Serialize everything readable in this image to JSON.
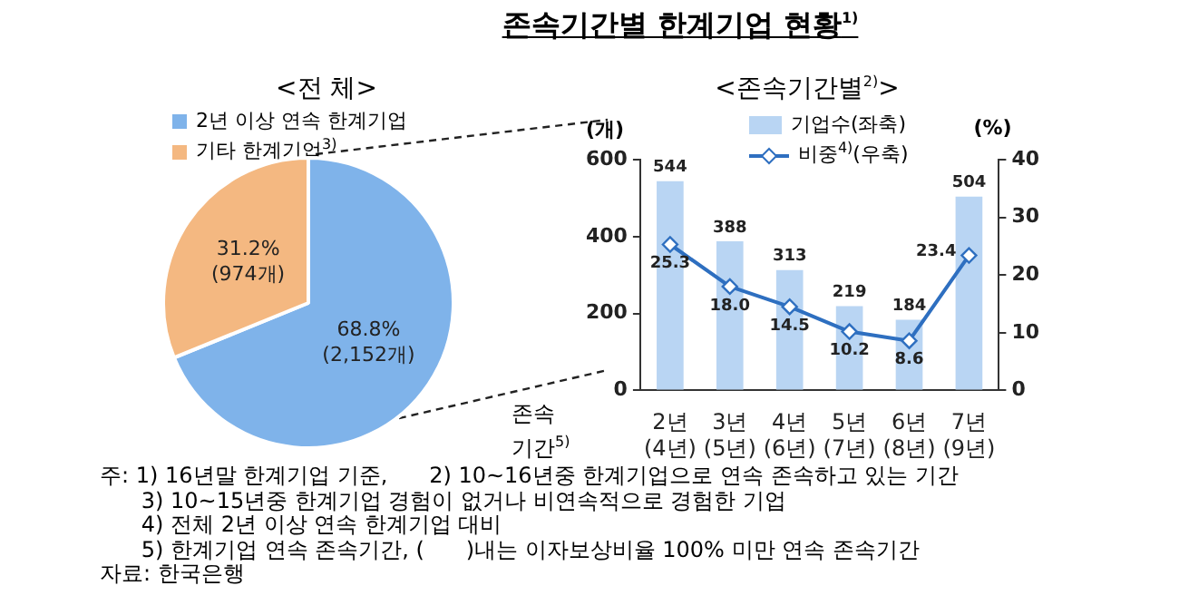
{
  "chart_data": [
    {
      "type": "pie",
      "subtitle": "<전 체>",
      "categories": [
        "2년 이상 연속 한계기업",
        "기타 한계기업$^{3)}$"
      ],
      "values": [
        2152,
        974
      ],
      "colors": [
        "#7fb3ea",
        "#f4b881"
      ],
      "value_labels": [
        "68.8%\n(2,152개)",
        "31.2%\n(974개)"
      ],
      "legend": "top left"
    },
    {
      "type": "bar",
      "title": "존속기간별 한계기업 현황$^{1)}$",
      "subtitle": "<존속기간별$^{2)}$>",
      "categories": [
        "2년\n(4년)",
        "3년\n(5년)",
        "4년\n(6년)",
        "5년\n(7년)",
        "6년\n(8년)",
        "7년\n(9년)"
      ],
      "series": [
        {
          "name": "기업수(좌축)",
          "type": "bar",
          "color": "#b9d5f3",
          "values": [
            544,
            388,
            313,
            219,
            184,
            504
          ],
          "value_labels": [
            "544",
            "388",
            "313",
            "219",
            "184",
            "504"
          ]
        },
        {
          "name": "비중$^{4)}$(우축)",
          "type": "line",
          "axis": "y2",
          "color": "#2e6fc0",
          "values": [
            25.3,
            18.0,
            14.5,
            10.2,
            8.6,
            23.4
          ],
          "value_labels": [
            "25.3",
            "18.0",
            "14.5",
            "10.2",
            "8.6",
            "23.4"
          ]
        }
      ],
      "marker": "diamond",
      "legend": "top",
      "xlabel": "존속\n기간$^{5)}$",
      "ylabel": "(개)",
      "y2label": "(%)",
      "ylim": [
        0,
        600
      ],
      "yticks": [
        0,
        200,
        400,
        600
      ],
      "y2lim": [
        0,
        40
      ],
      "y2ticks": [
        0,
        10,
        20,
        30,
        40
      ],
      "annotations": [
        "주: 1) 16년말 한계기업 기준,      2) 10~16년중 한계기업으로 연속 존속하고 있는 기간",
        "      3) 10~15년중 한계기업 경험이 없거나 비연속적으로 경험한 기업",
        "      4) 전체 2년 이상 연속 한계기업 대비",
        "      5) 한계기업 연속 존속기간, (      )내는 이자보상비율 100% 미만 연속 존속기간",
        "자료: 한국은행"
      ]
    }
  ]
}
